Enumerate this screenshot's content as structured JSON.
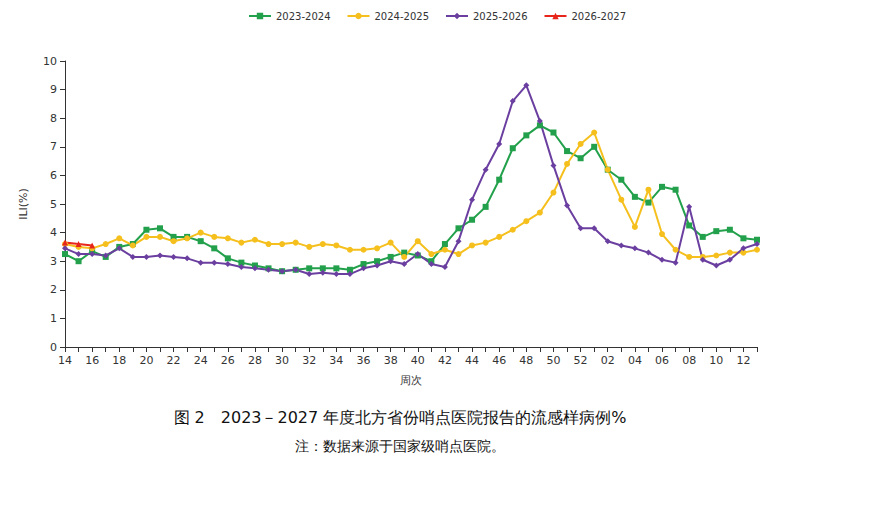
{
  "chart_data": {
    "type": "line",
    "title": "图 2　2023－2027 年度北方省份哨点医院报告的流感样病例%",
    "subtitle": "注：数据来源于国家级哨点医院。",
    "x_label": "周次",
    "y_label": "ILI(%)",
    "categories": [
      "14",
      null,
      "16",
      null,
      "18",
      null,
      "20",
      null,
      "22",
      null,
      "24",
      null,
      "26",
      null,
      "28",
      null,
      "30",
      null,
      "32",
      null,
      "34",
      null,
      "36",
      null,
      "38",
      null,
      "40",
      null,
      "42",
      null,
      "44",
      null,
      "46",
      null,
      "48",
      null,
      "50",
      null,
      "52",
      null,
      "02",
      null,
      "04",
      null,
      "06",
      null,
      "08",
      null,
      "10",
      null,
      "12",
      null
    ],
    "series": [
      {
        "name": "2023-2024",
        "color": "#22a04b",
        "marker": "square",
        "values": [
          3.25,
          3.0,
          3.35,
          3.15,
          3.5,
          3.6,
          4.1,
          4.15,
          3.85,
          3.85,
          3.7,
          3.45,
          3.1,
          2.95,
          2.85,
          2.75,
          2.65,
          2.7,
          2.75,
          2.75,
          2.75,
          2.7,
          2.9,
          3.0,
          3.15,
          3.3,
          3.2,
          3.0,
          3.6,
          4.15,
          4.45,
          4.9,
          5.85,
          6.95,
          7.4,
          7.75,
          7.5,
          6.85,
          6.6,
          7.0,
          6.2,
          5.85,
          5.25,
          5.05,
          5.6,
          5.5,
          4.25,
          3.85,
          4.05,
          4.1,
          3.8,
          3.75
        ]
      },
      {
        "name": "2024-2025",
        "color": "#f5c01e",
        "marker": "circle",
        "values": [
          3.6,
          3.5,
          3.45,
          3.6,
          3.8,
          3.55,
          3.85,
          3.85,
          3.7,
          3.8,
          4.0,
          3.85,
          3.8,
          3.65,
          3.75,
          3.6,
          3.6,
          3.65,
          3.5,
          3.6,
          3.55,
          3.4,
          3.4,
          3.45,
          3.65,
          3.15,
          3.7,
          3.25,
          3.4,
          3.25,
          3.55,
          3.65,
          3.85,
          4.1,
          4.4,
          4.7,
          5.4,
          6.4,
          7.1,
          7.5,
          6.2,
          5.15,
          4.2,
          5.5,
          3.95,
          3.4,
          3.15,
          3.15,
          3.2,
          3.3,
          3.3,
          3.4
        ]
      },
      {
        "name": "2025-2026",
        "color": "#6b3fa0",
        "marker": "diamond",
        "values": [
          3.45,
          3.25,
          3.25,
          3.2,
          3.45,
          3.15,
          3.15,
          3.2,
          3.15,
          3.1,
          2.95,
          2.95,
          2.9,
          2.8,
          2.75,
          2.7,
          2.65,
          2.7,
          2.55,
          2.6,
          2.55,
          2.55,
          2.75,
          2.85,
          3.0,
          2.9,
          3.25,
          2.9,
          2.8,
          3.7,
          5.15,
          6.2,
          7.1,
          8.6,
          9.15,
          7.9,
          6.35,
          4.95,
          4.15,
          4.15,
          3.7,
          3.55,
          3.45,
          3.3,
          3.05,
          2.95,
          4.9,
          3.05,
          2.85,
          3.05,
          3.45,
          3.6
        ]
      },
      {
        "name": "2026-2027",
        "color": "#e8251a",
        "marker": "triangle",
        "values": [
          3.65,
          3.6,
          3.55,
          null,
          null,
          null,
          null,
          null,
          null,
          null,
          null,
          null,
          null,
          null,
          null,
          null,
          null,
          null,
          null,
          null,
          null,
          null,
          null,
          null,
          null,
          null,
          null,
          null,
          null,
          null,
          null,
          null,
          null,
          null,
          null,
          null,
          null,
          null,
          null,
          null,
          null,
          null,
          null,
          null,
          null,
          null,
          null,
          null,
          null,
          null,
          null,
          null
        ]
      }
    ],
    "ylim": [
      0,
      10
    ],
    "yticks": [
      0,
      1,
      2,
      3,
      4,
      5,
      6,
      7,
      8,
      9,
      10
    ],
    "grid": false,
    "legend": "top"
  }
}
